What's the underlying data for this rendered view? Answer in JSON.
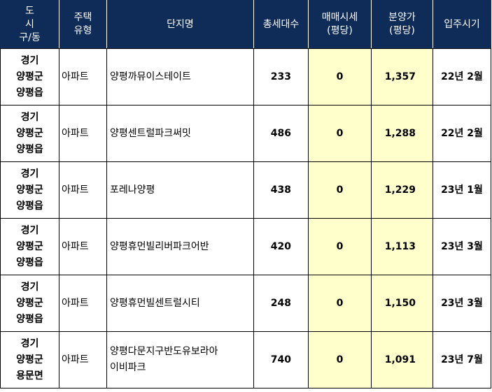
{
  "headers": {
    "region": [
      "도",
      "시",
      "구/동"
    ],
    "type": [
      "주택",
      "유형"
    ],
    "name": "단지명",
    "households": "총세대수",
    "sale_price": [
      "매매시세",
      "(평당)"
    ],
    "presale_price": [
      "분양가",
      "(평당)"
    ],
    "movein": "입주시기"
  },
  "rows": [
    {
      "region": [
        "경기",
        "양평군",
        "양평읍"
      ],
      "type": "아파트",
      "name": [
        "양평까뮤이스테이트"
      ],
      "households": "233",
      "sale_price": "0",
      "presale_price": "1,357",
      "movein": "22년 2월"
    },
    {
      "region": [
        "경기",
        "양평군",
        "양평읍"
      ],
      "type": "아파트",
      "name": [
        "양평센트럴파크써밋"
      ],
      "households": "486",
      "sale_price": "0",
      "presale_price": "1,288",
      "movein": "22년 2월"
    },
    {
      "region": [
        "경기",
        "양평군",
        "양평읍"
      ],
      "type": "아파트",
      "name": [
        "포레나양평"
      ],
      "households": "438",
      "sale_price": "0",
      "presale_price": "1,229",
      "movein": "23년 1월"
    },
    {
      "region": [
        "경기",
        "양평군",
        "양평읍"
      ],
      "type": "아파트",
      "name": [
        "양평휴먼빌리버파크어반"
      ],
      "households": "420",
      "sale_price": "0",
      "presale_price": "1,113",
      "movein": "23년 3월"
    },
    {
      "region": [
        "경기",
        "양평군",
        "양평읍"
      ],
      "type": "아파트",
      "name": [
        "양평휴먼빌센트럴시티"
      ],
      "households": "248",
      "sale_price": "0",
      "presale_price": "1,150",
      "movein": "23년 3월"
    },
    {
      "region": [
        "경기",
        "양평군",
        "용문면"
      ],
      "type": "아파트",
      "name": [
        "양평다문지구반도유보라아",
        "이비파크"
      ],
      "households": "740",
      "sale_price": "0",
      "presale_price": "1,091",
      "movein": "23년 7월"
    }
  ],
  "colors": {
    "header_bg": "#0f2b57",
    "header_text": "#ffffff",
    "highlight_bg": "#ffffcc",
    "border": "#000000"
  }
}
